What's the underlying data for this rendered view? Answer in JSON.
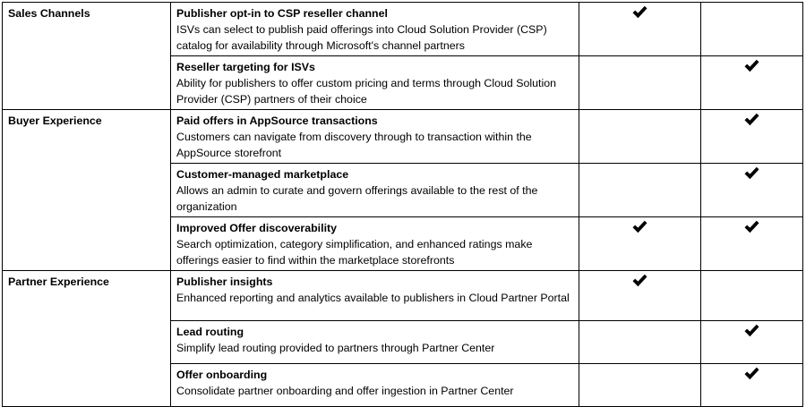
{
  "rows": [
    {
      "area": "Sales Channels",
      "features": [
        {
          "title": "Publisher opt-in to CSP reseller channel",
          "desc": "ISVs can select to publish paid offerings into Cloud Solution Provider (CSP) catalog for availability through Microsoft's channel partners",
          "col1": true,
          "col2": false
        },
        {
          "title": "Reseller targeting for ISVs",
          "desc": "Ability for publishers to offer custom pricing and terms through Cloud Solution Provider (CSP) partners of their choice",
          "col1": false,
          "col2": true
        }
      ]
    },
    {
      "area": "Buyer Experience",
      "features": [
        {
          "title": "Paid offers in AppSource transactions",
          "desc": "Customers can navigate from discovery through to transaction within the AppSource storefront",
          "col1": false,
          "col2": true
        },
        {
          "title": "Customer-managed marketplace",
          "desc": "Allows an admin to curate and govern offerings available to the rest of the organization",
          "col1": false,
          "col2": true
        },
        {
          "title": "Improved Offer discoverability",
          "desc": "Search optimization, category simplification, and enhanced ratings make offerings easier to find within the marketplace storefronts",
          "col1": true,
          "col2": true
        }
      ]
    },
    {
      "area": "Partner Experience",
      "features": [
        {
          "title": "Publisher insights",
          "desc": "Enhanced reporting and analytics available to publishers in Cloud Partner Portal",
          "col1": true,
          "col2": false
        },
        {
          "title": "Lead routing",
          "desc": "Simplify lead routing provided to partners through Partner Center",
          "col1": false,
          "col2": true
        },
        {
          "title": "Offer onboarding",
          "desc": "Consolidate partner onboarding and offer ingestion in Partner Center",
          "col1": false,
          "col2": true
        }
      ]
    }
  ]
}
